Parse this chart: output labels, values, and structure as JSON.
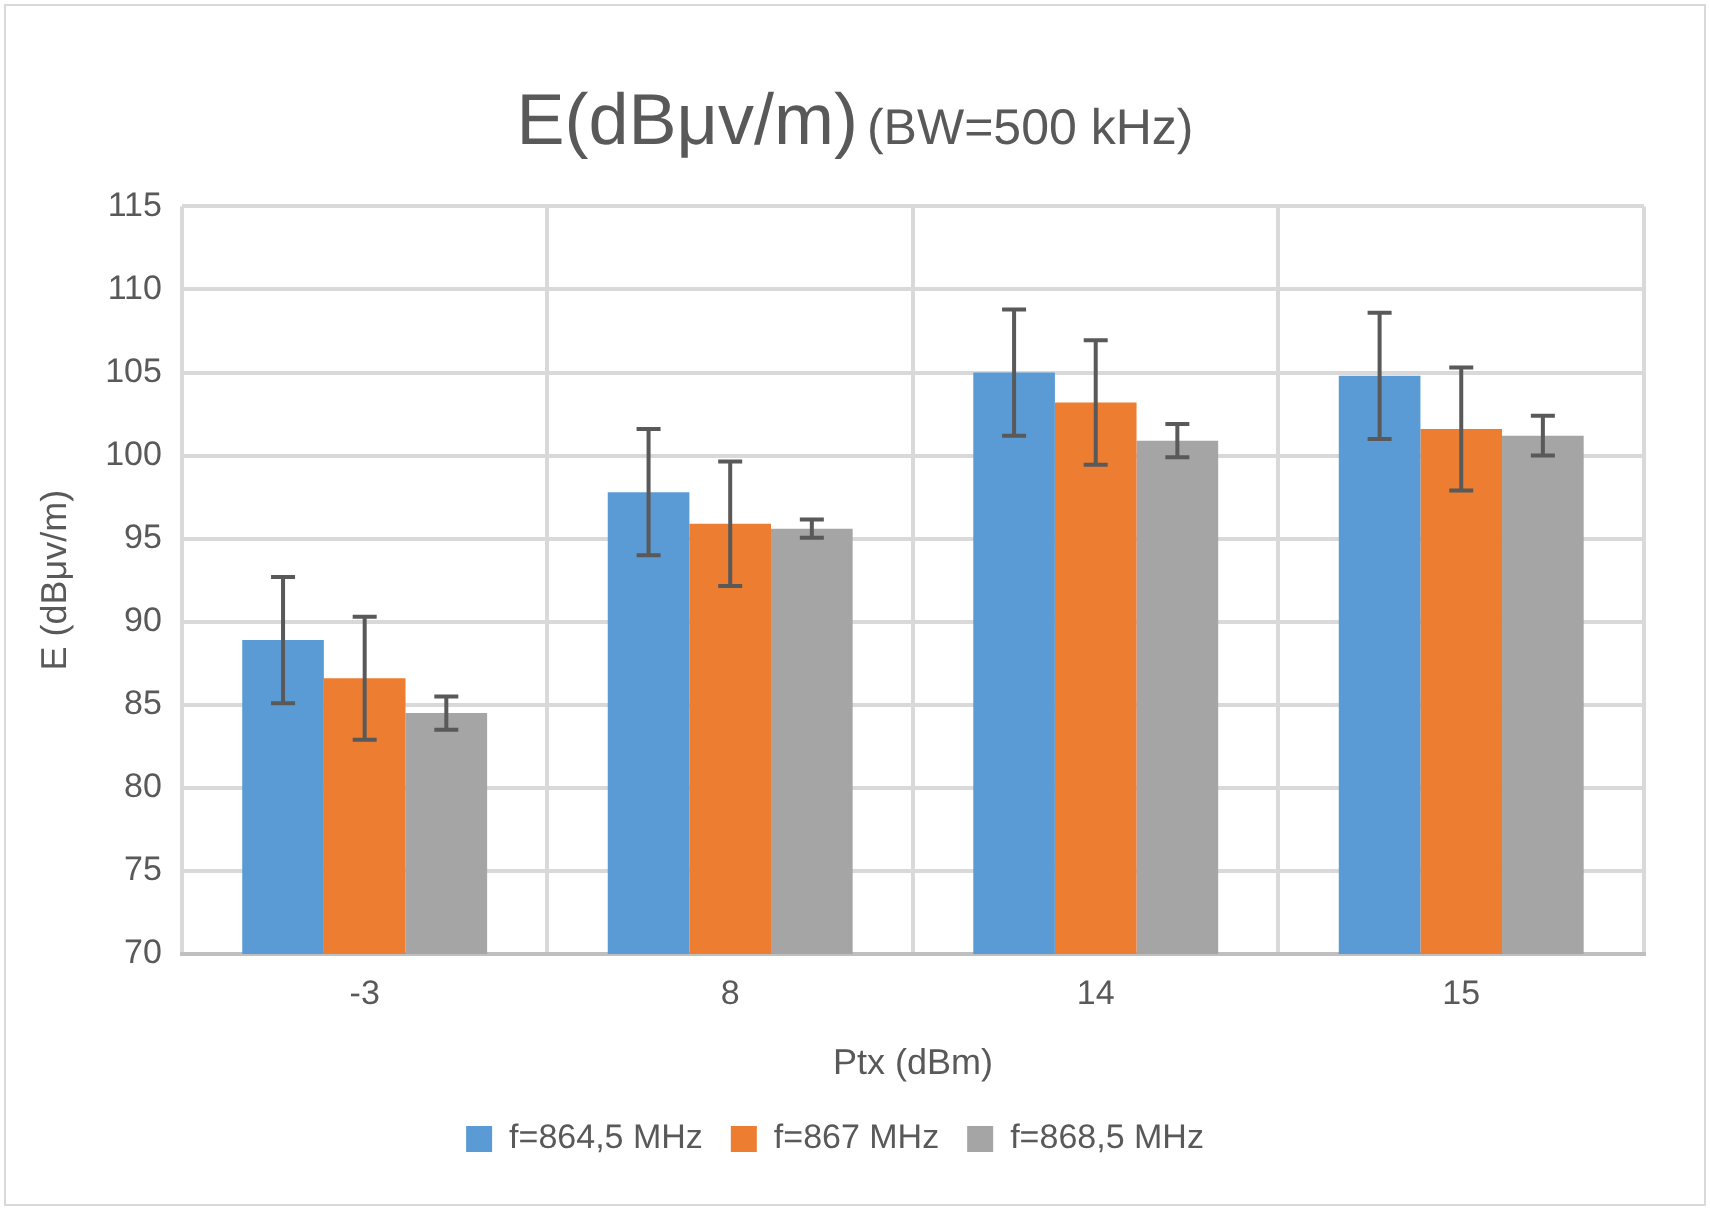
{
  "chart_data": {
    "type": "bar",
    "title": "E(dBμv/m)",
    "subtitle": "(BW=500 kHz)",
    "xlabel": "Ptx (dBm)",
    "ylabel": "E (dBμv/m)",
    "categories": [
      "-3",
      "8",
      "14",
      "15"
    ],
    "series": [
      {
        "name": "f=864,5 MHz",
        "color": "#5b9bd5",
        "values": [
          88.9,
          97.8,
          105.0,
          104.8
        ],
        "errors": [
          3.8,
          3.8,
          3.8,
          3.8
        ]
      },
      {
        "name": "f=867 MHz",
        "color": "#ed7d31",
        "values": [
          86.6,
          95.9,
          103.2,
          101.6
        ],
        "errors": [
          3.7,
          3.75,
          3.75,
          3.7
        ]
      },
      {
        "name": "f=868,5 MHz",
        "color": "#a5a5a5",
        "values": [
          84.5,
          95.6,
          100.9,
          101.2
        ],
        "errors": [
          1.0,
          0.55,
          1.0,
          1.2
        ]
      }
    ],
    "ylim": [
      70,
      115
    ],
    "yticks": [
      70,
      75,
      80,
      85,
      90,
      95,
      100,
      105,
      110,
      115
    ],
    "grid": true,
    "legend": "bottom"
  }
}
